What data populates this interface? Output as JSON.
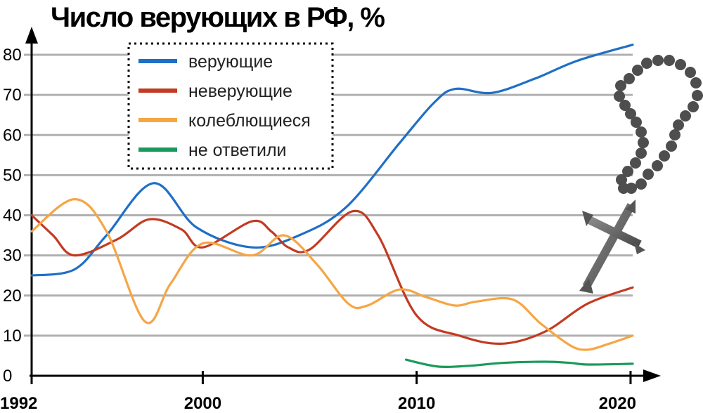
{
  "chart_data": {
    "type": "line",
    "title": "Число верующих в РФ, %",
    "xlabel": "",
    "ylabel": "",
    "xlim": [
      1992,
      2020.3
    ],
    "ylim": [
      0,
      80
    ],
    "y_ticks": [
      "0",
      "10",
      "20",
      "30",
      "40",
      "50",
      "60",
      "70",
      "80"
    ],
    "x_ticks": [
      "1992",
      "2000",
      "2010",
      "2020"
    ],
    "grid": true,
    "legend_position": "top-left",
    "series": [
      {
        "name": "верующие",
        "color": "#1f6fc6",
        "x": [
          1992,
          1994,
          1995.5,
          1997.7,
          1999.7,
          2002.3,
          2004.5,
          2006.7,
          2009.2,
          2010.8,
          2011.8,
          2013.5,
          2015.5,
          2017.5,
          2020.1
        ],
        "y": [
          25,
          26.5,
          35,
          48,
          37,
          32,
          35,
          42,
          58,
          68,
          71.5,
          70.5,
          74,
          78.5,
          82.5
        ]
      },
      {
        "name": "неверующие",
        "color": "#c23b22",
        "x": [
          1992,
          1993,
          1994,
          1996,
          1997.5,
          1999,
          2000,
          2002.3,
          2003.2,
          2004,
          2005,
          2007,
          2008.2,
          2010,
          2012,
          2014,
          2016,
          2018,
          2020.1
        ],
        "y": [
          40,
          35,
          30,
          34,
          39,
          36.5,
          32,
          38.5,
          36,
          32,
          31.5,
          41,
          35,
          15,
          10,
          8,
          11,
          18,
          22
        ]
      },
      {
        "name": "колеблющиеся",
        "color": "#f6a544",
        "x": [
          1992,
          1994,
          1995.5,
          1997.3,
          1998.5,
          2000,
          2002.3,
          2003.8,
          2005.3,
          2006.8,
          2007.7,
          2009.2,
          2010.5,
          2011.8,
          2012.8,
          2014.5,
          2015.8,
          2017.2,
          2018,
          2019,
          2020.1
        ],
        "y": [
          36,
          44,
          36,
          13.5,
          23,
          33,
          30,
          35,
          28,
          18,
          17.5,
          21.5,
          19.5,
          17.5,
          18.5,
          19,
          13,
          7.5,
          6.5,
          8,
          10
        ]
      },
      {
        "name": "не ответили",
        "color": "#1a9a5a",
        "x": [
          2009.5,
          2011,
          2012.5,
          2014,
          2016,
          2017.2,
          2018,
          2020.1
        ],
        "y": [
          4,
          2.3,
          2.5,
          3.2,
          3.5,
          3.2,
          2.8,
          3
        ]
      }
    ]
  }
}
